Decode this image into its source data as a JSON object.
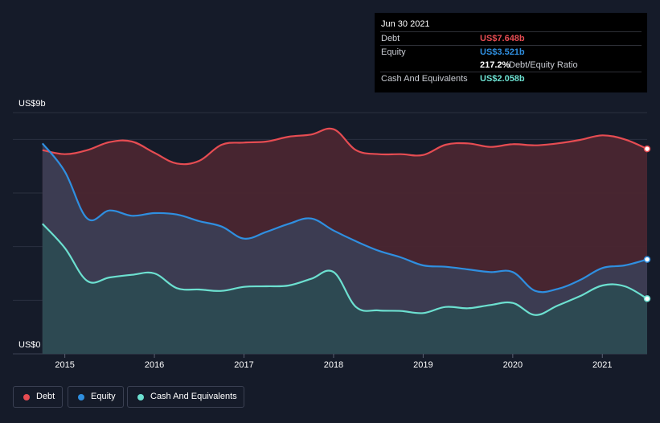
{
  "tooltip": {
    "date": "Jun 30 2021",
    "debt_label": "Debt",
    "debt_value": "US$7.648b",
    "equity_label": "Equity",
    "equity_value": "US$3.521b",
    "ratio_value": "217.2%",
    "ratio_label": "Debt/Equity Ratio",
    "cash_label": "Cash And Equivalents",
    "cash_value": "US$2.058b"
  },
  "legend": {
    "debt": "Debt",
    "equity": "Equity",
    "cash": "Cash And Equivalents"
  },
  "colors": {
    "background": "#151b29",
    "debt": "#e64c52",
    "equity": "#2f8fe0",
    "cash": "#6ce0d0",
    "debt_fill": "#4a2630",
    "equity_fill": "#3b3f56",
    "cash_fill": "#2b4a52",
    "grid": "#2a3040"
  },
  "chart_data": {
    "type": "area",
    "y_top_label": "US$9b",
    "y_bottom_label": "US$0",
    "ylim": [
      0,
      9
    ],
    "xlim": [
      2014.42,
      2021.5
    ],
    "x_ticks": [
      2015,
      2016,
      2017,
      2018,
      2019,
      2020,
      2021
    ],
    "x_tick_labels": [
      "2015",
      "2016",
      "2017",
      "2018",
      "2019",
      "2020",
      "2021"
    ],
    "grid": true,
    "legend_position": "bottom-left",
    "series": [
      {
        "key": "debt",
        "name": "Debt",
        "x": [
          2014.75,
          2015.0,
          2015.25,
          2015.5,
          2015.75,
          2016.0,
          2016.25,
          2016.5,
          2016.75,
          2017.0,
          2017.25,
          2017.5,
          2017.75,
          2018.0,
          2018.25,
          2018.5,
          2018.75,
          2019.0,
          2019.25,
          2019.5,
          2019.75,
          2020.0,
          2020.25,
          2020.5,
          2020.75,
          2021.0,
          2021.25,
          2021.5
        ],
        "values": [
          7.6,
          7.45,
          7.6,
          7.9,
          7.92,
          7.5,
          7.1,
          7.2,
          7.8,
          7.88,
          7.92,
          8.1,
          8.18,
          8.38,
          7.6,
          7.45,
          7.45,
          7.42,
          7.8,
          7.85,
          7.72,
          7.82,
          7.78,
          7.85,
          7.98,
          8.15,
          8.0,
          7.648
        ]
      },
      {
        "key": "equity",
        "name": "Equity",
        "x": [
          2014.75,
          2015.0,
          2015.25,
          2015.5,
          2015.75,
          2016.0,
          2016.25,
          2016.5,
          2016.75,
          2017.0,
          2017.25,
          2017.5,
          2017.75,
          2018.0,
          2018.25,
          2018.5,
          2018.75,
          2019.0,
          2019.25,
          2019.5,
          2019.75,
          2020.0,
          2020.25,
          2020.5,
          2020.75,
          2021.0,
          2021.25,
          2021.5
        ],
        "values": [
          7.85,
          6.8,
          5.05,
          5.35,
          5.15,
          5.25,
          5.2,
          4.95,
          4.75,
          4.3,
          4.55,
          4.85,
          5.05,
          4.6,
          4.2,
          3.85,
          3.6,
          3.3,
          3.25,
          3.15,
          3.05,
          3.05,
          2.35,
          2.42,
          2.75,
          3.2,
          3.3,
          3.521
        ]
      },
      {
        "key": "cash",
        "name": "Cash And Equivalents",
        "x": [
          2014.75,
          2015.0,
          2015.25,
          2015.5,
          2015.75,
          2016.0,
          2016.25,
          2016.5,
          2016.75,
          2017.0,
          2017.25,
          2017.5,
          2017.75,
          2018.0,
          2018.25,
          2018.5,
          2018.75,
          2019.0,
          2019.25,
          2019.5,
          2019.75,
          2020.0,
          2020.25,
          2020.5,
          2020.75,
          2021.0,
          2021.25,
          2021.5
        ],
        "values": [
          4.85,
          3.95,
          2.72,
          2.85,
          2.95,
          3.0,
          2.45,
          2.4,
          2.35,
          2.5,
          2.52,
          2.55,
          2.8,
          3.05,
          1.75,
          1.62,
          1.6,
          1.52,
          1.75,
          1.7,
          1.82,
          1.9,
          1.45,
          1.8,
          2.15,
          2.55,
          2.52,
          2.058
        ]
      }
    ]
  }
}
